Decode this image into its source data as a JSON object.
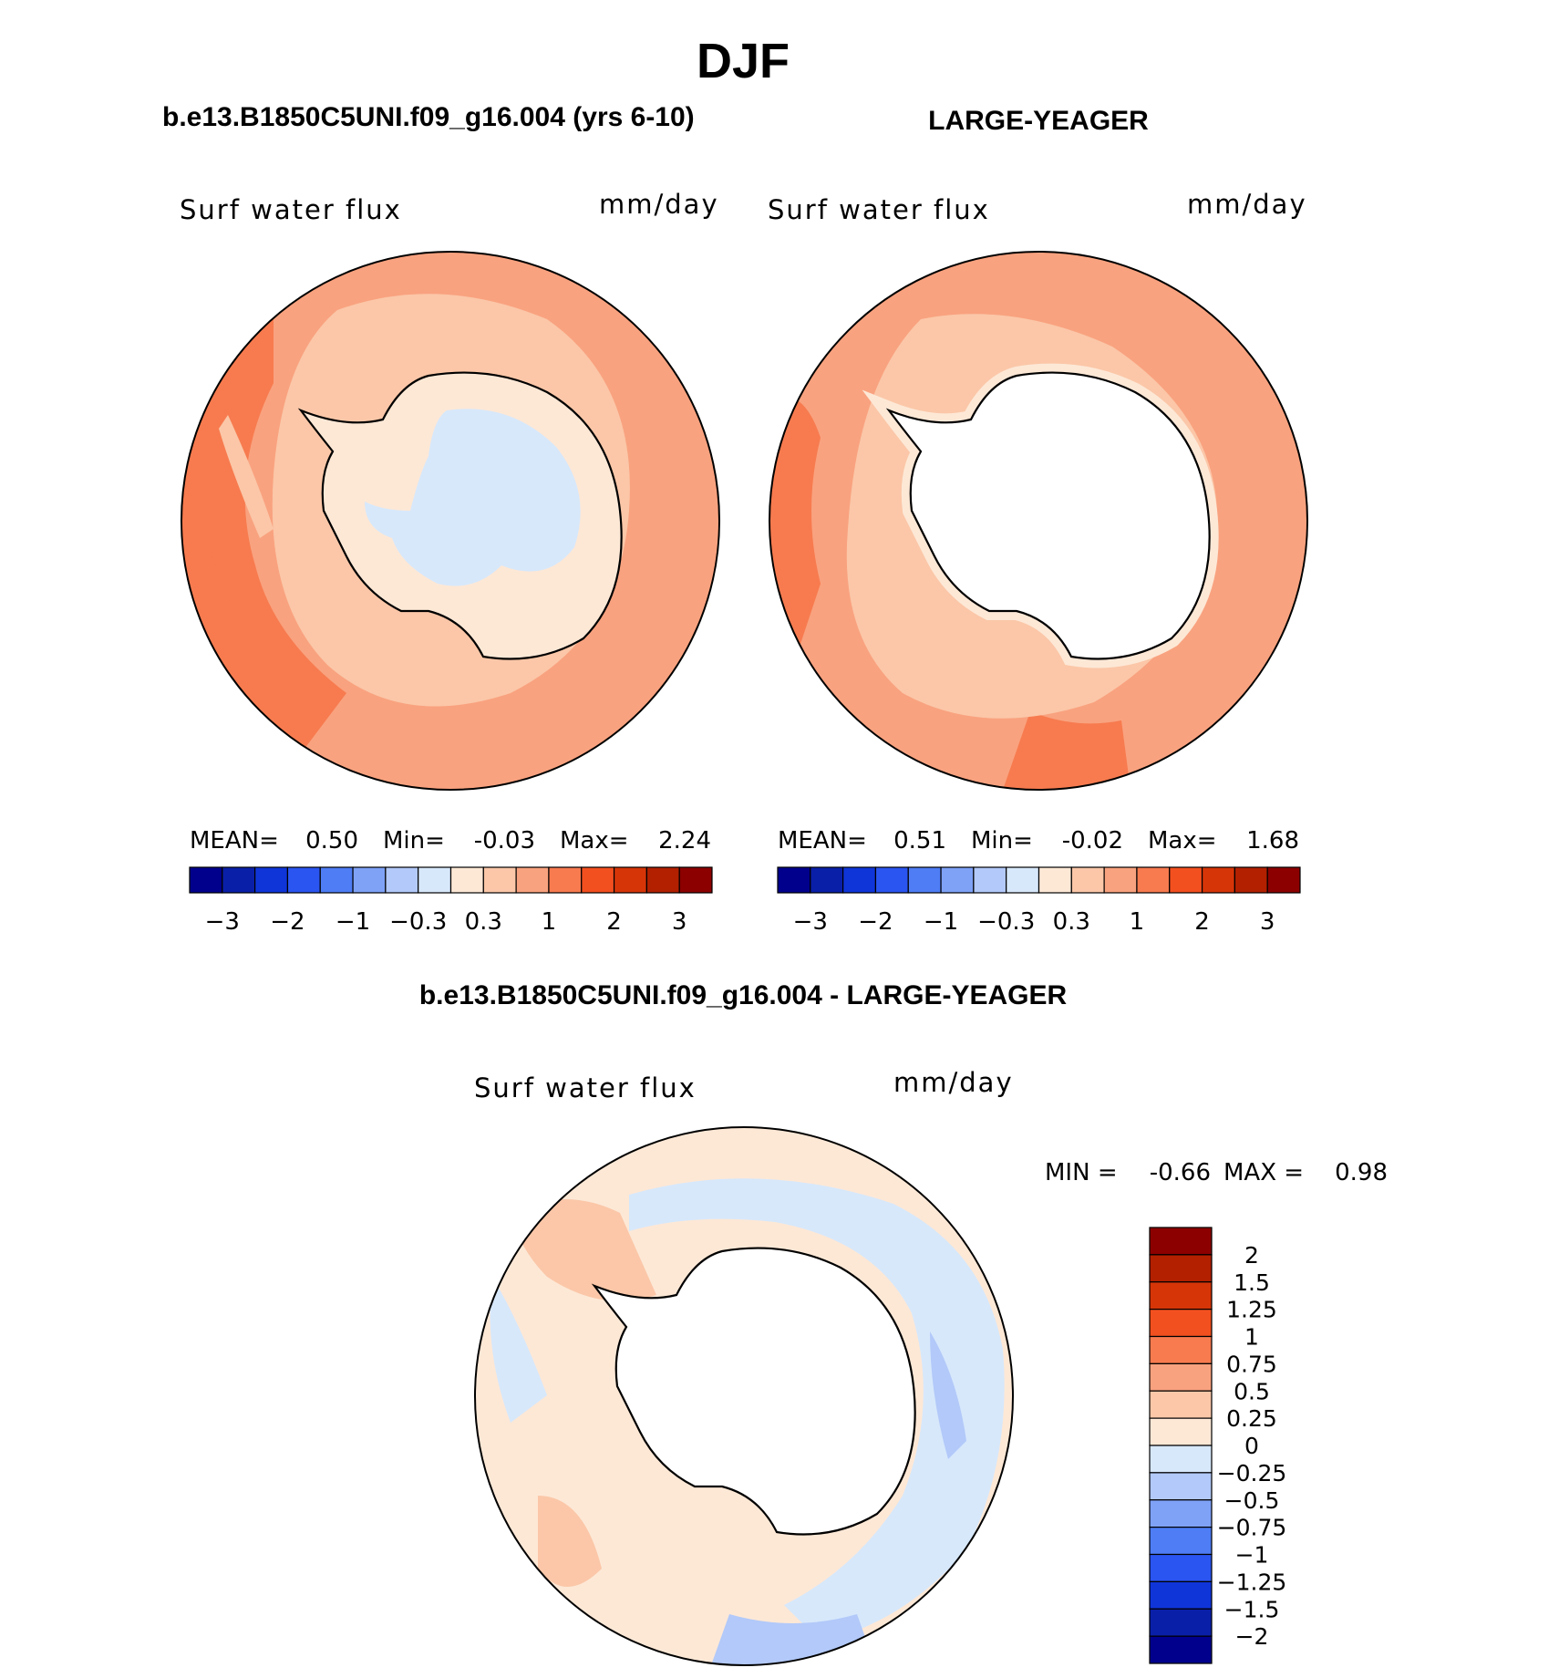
{
  "chart_data": {
    "type": "polar-stereographic contour maps",
    "title": "DJF",
    "panels": [
      {
        "id": "case",
        "title": "b.e13.B1850C5UNI.f09_g16.004 (yrs 6-10)",
        "field": "Surf water flux",
        "units": "mm/day",
        "stats_labels": [
          "MEAN=",
          "Min=",
          "Max="
        ],
        "stats_values": [
          "0.50",
          "-0.03",
          "2.24"
        ],
        "contour_levels": [
          -3,
          -2,
          -1,
          -0.3,
          0.3,
          1,
          2,
          3
        ],
        "colorbar_tick_labels": [
          "−3",
          "−2",
          "−1",
          "−0.3",
          "0.3",
          "1",
          "2",
          "3"
        ],
        "colorbar_colors": [
          "#00008c",
          "#0a1fa8",
          "#0f35d9",
          "#2b55f0",
          "#4e7df5",
          "#7fa2f7",
          "#b2c9f9",
          "#d7e8fb",
          "#fde8d6",
          "#fbc7a8",
          "#f9a27f",
          "#f77b4f",
          "#f3501f",
          "#d63508",
          "#b22000",
          "#8c0000"
        ]
      },
      {
        "id": "obs",
        "title": "LARGE-YEAGER",
        "field": "Surf water flux",
        "units": "mm/day",
        "stats_labels": [
          "MEAN=",
          "Min=",
          "Max="
        ],
        "stats_values": [
          "0.51",
          "-0.02",
          "1.68"
        ],
        "contour_levels": [
          -3,
          -2,
          -1,
          -0.3,
          0.3,
          1,
          2,
          3
        ],
        "colorbar_tick_labels": [
          "−3",
          "−2",
          "−1",
          "−0.3",
          "0.3",
          "1",
          "2",
          "3"
        ],
        "colorbar_colors": [
          "#00008c",
          "#0a1fa8",
          "#0f35d9",
          "#2b55f0",
          "#4e7df5",
          "#7fa2f7",
          "#b2c9f9",
          "#d7e8fb",
          "#fde8d6",
          "#fbc7a8",
          "#f9a27f",
          "#f77b4f",
          "#f3501f",
          "#d63508",
          "#b22000",
          "#8c0000"
        ]
      },
      {
        "id": "diff",
        "title": "b.e13.B1850C5UNI.f09_g16.004 - LARGE-YEAGER",
        "field": "Surf water flux",
        "units": "mm/day",
        "stats_labels": [
          "MIN =",
          "MAX ="
        ],
        "stats_values": [
          "-0.66",
          "0.98"
        ],
        "contour_levels": [
          2,
          1.5,
          1.25,
          1,
          0.75,
          0.5,
          0.25,
          0,
          -0.25,
          -0.5,
          -0.75,
          -1,
          -1.25,
          -1.5,
          -2
        ],
        "colorbar_tick_labels": [
          "2",
          "1.5",
          "1.25",
          "1",
          "0.75",
          "0.5",
          "0.25",
          "0",
          "−0.25",
          "−0.5",
          "−0.75",
          "−1",
          "−1.25",
          "−1.5",
          "−2"
        ],
        "colorbar_colors": [
          "#8c0000",
          "#b22000",
          "#d63508",
          "#f3501f",
          "#f77b4f",
          "#f9a27f",
          "#fbc7a8",
          "#fde8d6",
          "#d7e8fb",
          "#b2c9f9",
          "#7fa2f7",
          "#4e7df5",
          "#2b55f0",
          "#0f35d9",
          "#0a1fa8",
          "#00008c"
        ]
      }
    ]
  },
  "palette": {
    "case_ocean": "#f9a27f",
    "case_ring": "#fbc7a8",
    "case_shelf": "#fde8d6",
    "case_interior": "#d7e8fb",
    "case_high": "#f77b4f",
    "obs_ocean": "#f9a27f",
    "obs_ring": "#fbc7a8",
    "obs_shelf": "#fde8d6",
    "diff_base": "#fde8d6",
    "diff_pos": "#fbc7a8",
    "diff_neg": "#d7e8fb",
    "diff_neg2": "#b2c9f9"
  }
}
